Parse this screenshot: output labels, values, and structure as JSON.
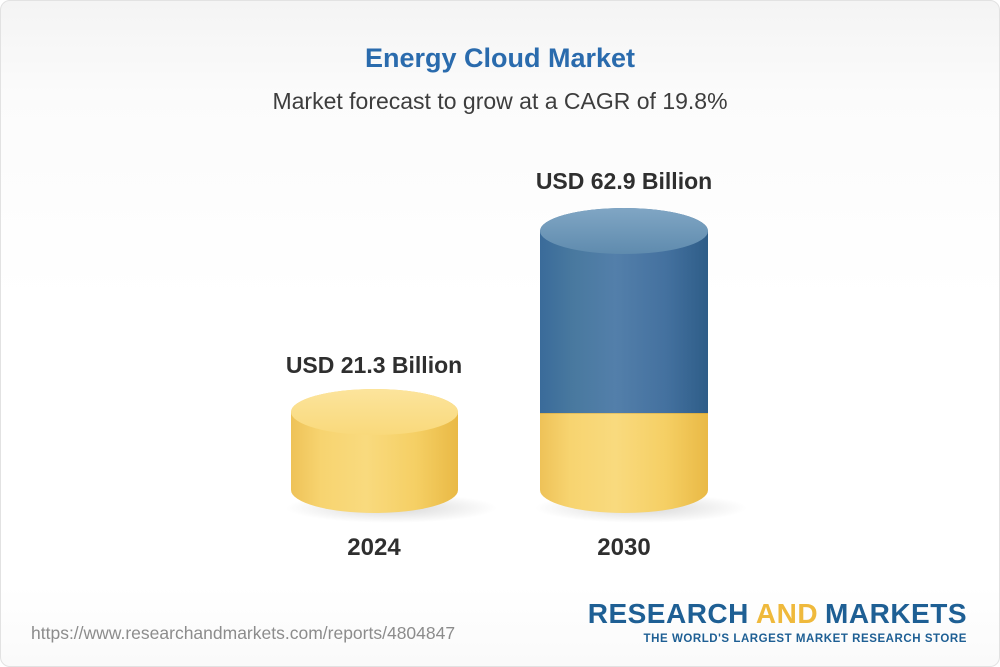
{
  "header": {
    "title": "Energy Cloud Market",
    "subtitle": "Market forecast to grow at a CAGR of 19.8%"
  },
  "chart_data": {
    "type": "bar",
    "title": "Energy Cloud Market",
    "subtitle": "Market forecast to grow at a CAGR of 19.8%",
    "categories": [
      "2024",
      "2030"
    ],
    "values": [
      21.3,
      62.9
    ],
    "unit": "USD Billion",
    "value_labels": [
      "USD 21.3 Billion",
      "USD 62.9 Billion"
    ],
    "cagr": "19.8%",
    "ylim": [
      0,
      70
    ],
    "grid": false,
    "legend": false,
    "bar_style": "3d-cylinder",
    "stacked_visual_note": "2030 bar shows 2024 base value in yellow with growth portion in blue",
    "colors": {
      "bar_2024": "#f5cf64",
      "bar_2030_growth": "#44719f",
      "bar_2030_base": "#f5cf64",
      "title_blue": "#2a6bad"
    }
  },
  "footer": {
    "url": "https://www.researchandmarkets.com/reports/4804847",
    "logo": {
      "word1": "RESEARCH",
      "word2": "AND",
      "word3": "MARKETS",
      "tagline": "THE WORLD'S LARGEST MARKET RESEARCH STORE",
      "blue": "#1e5f94",
      "yellow": "#efb93c"
    }
  }
}
